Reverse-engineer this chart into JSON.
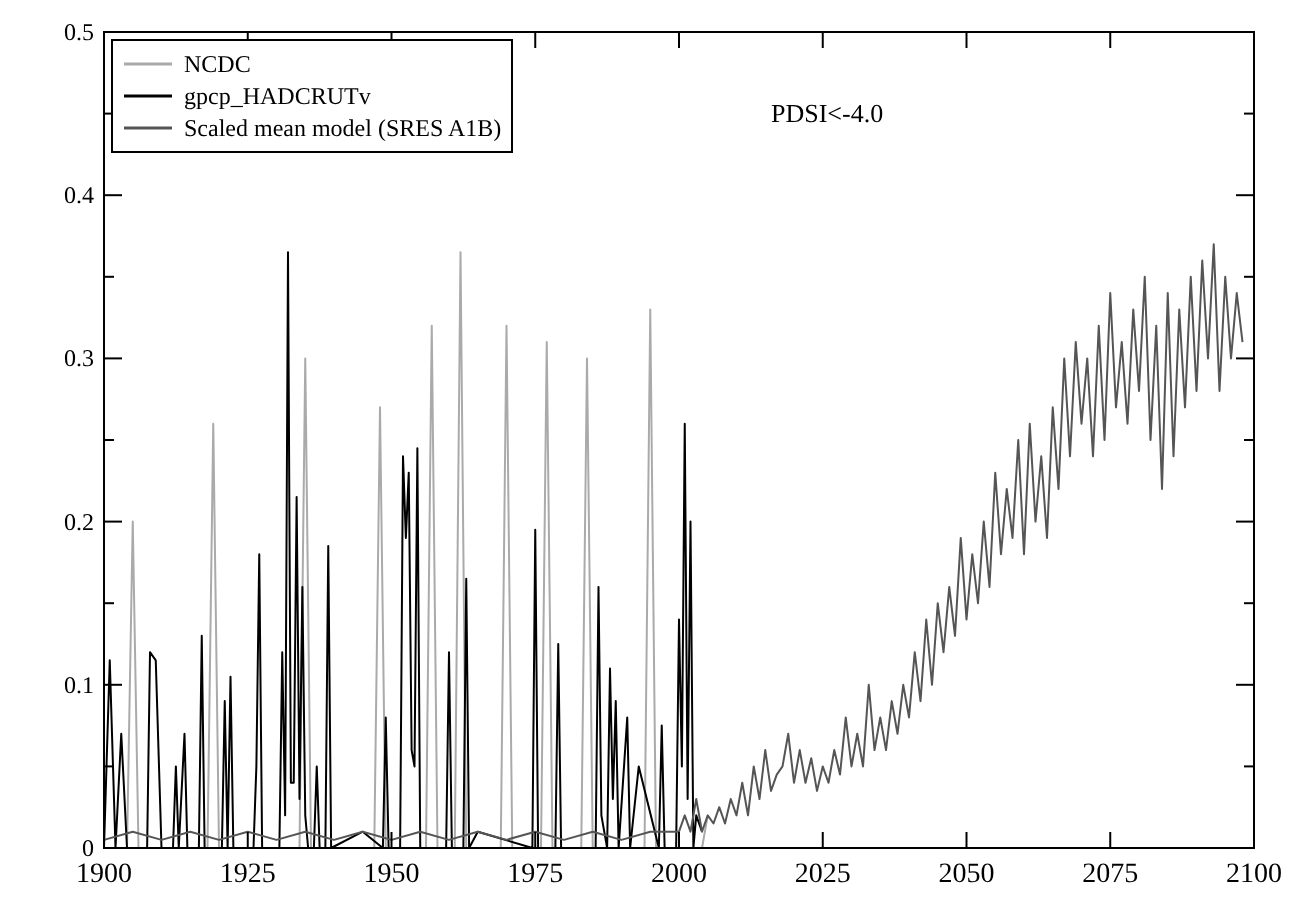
{
  "chart_data": {
    "type": "line",
    "annotations": [
      "PDSI<-4.0"
    ],
    "xlim": [
      1900,
      2100
    ],
    "xticks": [
      1900,
      1925,
      1950,
      1975,
      2000,
      2025,
      2050,
      2075,
      2100
    ],
    "ylim": [
      0,
      0.5
    ],
    "yticks": [
      0,
      {
        "value": 0.05,
        "label": null
      },
      0.1,
      {
        "value": 0.15,
        "label": null
      },
      0.2,
      {
        "value": 0.25,
        "label": null
      },
      0.3,
      {
        "value": 0.35,
        "label": null
      },
      0.4,
      {
        "value": 0.45,
        "label": null
      },
      0.5
    ],
    "grid": false,
    "legend": "top left",
    "marker": "none",
    "line_style": "solid",
    "series": [
      {
        "name": "NCDC",
        "color": "#aaaaaa",
        "x": [
          1904,
          1905,
          1906,
          1918,
          1919,
          1920,
          1934,
          1935,
          1936,
          1947,
          1948,
          1949,
          1956,
          1957,
          1958,
          1961,
          1962,
          1963,
          1969,
          1970,
          1971,
          1976,
          1977,
          1978,
          1983,
          1984,
          1985,
          1994,
          1995,
          1996,
          2004,
          2005
        ],
        "values": [
          0,
          0.2,
          0,
          0,
          0.26,
          0,
          0,
          0.3,
          0,
          0,
          0.27,
          0,
          0,
          0.32,
          0,
          0,
          0.365,
          0,
          0,
          0.32,
          0,
          0,
          0.31,
          0,
          0,
          0.3,
          0,
          0,
          0.33,
          0,
          0,
          0.02
        ]
      },
      {
        "name": "gpcp_HADCRUTv",
        "color": "#000000",
        "x": [
          1900,
          1901,
          1902,
          1903,
          1904,
          1907.5,
          1908,
          1909,
          1910,
          1912,
          1912.5,
          1913,
          1914,
          1914.5,
          1916.5,
          1917,
          1917.5,
          1920.5,
          1921,
          1921.5,
          1922,
          1922.5,
          1926,
          1926.5,
          1927,
          1927.5,
          1930.5,
          1931,
          1931.5,
          1932,
          1932.5,
          1933,
          1933.5,
          1934,
          1934.5,
          1935,
          1935.5,
          1936.5,
          1937,
          1937.5,
          1938.5,
          1939,
          1939.5,
          1945,
          1948.5,
          1949,
          1949.5,
          1951.5,
          1952,
          1952.5,
          1953,
          1953.5,
          1954,
          1954.5,
          1955,
          1955.5,
          1959.5,
          1960,
          1960.5,
          1962.5,
          1963,
          1963.5,
          1965,
          1974.5,
          1975,
          1975.5,
          1978.5,
          1979,
          1979.5,
          1985.5,
          1986,
          1986.5,
          1987.5,
          1988,
          1988.5,
          1989,
          1989.5,
          1991,
          1991.5,
          1993,
          1996.5,
          1997,
          1997.5,
          1999.5,
          2000,
          2000.5,
          2001,
          2001.5,
          2002,
          2002.5,
          2003,
          2004
        ],
        "values": [
          0,
          0.115,
          0,
          0.07,
          0,
          0,
          0.12,
          0.115,
          0,
          0,
          0.05,
          0,
          0.07,
          0,
          0,
          0.13,
          0,
          0,
          0.09,
          0,
          0.105,
          0,
          0,
          0.05,
          0.18,
          0,
          0,
          0.12,
          0.02,
          0.365,
          0.04,
          0.04,
          0.215,
          0.03,
          0.16,
          0.02,
          0,
          0,
          0.05,
          0,
          0,
          0.185,
          0,
          0.01,
          0,
          0.08,
          0,
          0,
          0.24,
          0.19,
          0.23,
          0.06,
          0.05,
          0.245,
          0,
          0,
          0,
          0.12,
          0,
          0,
          0.165,
          0,
          0.01,
          0,
          0.195,
          0,
          0,
          0.125,
          0,
          0,
          0.16,
          0.02,
          0,
          0.11,
          0.03,
          0.09,
          0,
          0.08,
          0,
          0.05,
          0,
          0.075,
          0,
          0,
          0.14,
          0.05,
          0.26,
          0.03,
          0.2,
          0,
          0.02,
          0.01
        ]
      },
      {
        "name": "Scaled mean model (SRES A1B)",
        "color": "#555555",
        "x": [
          1900,
          1905,
          1910,
          1915,
          1920,
          1925,
          1930,
          1935,
          1940,
          1945,
          1950,
          1955,
          1960,
          1965,
          1970,
          1975,
          1980,
          1985,
          1990,
          1995,
          2000,
          2001,
          2002,
          2003,
          2004,
          2005,
          2006,
          2007,
          2008,
          2009,
          2010,
          2011,
          2012,
          2013,
          2014,
          2015,
          2016,
          2017,
          2018,
          2019,
          2020,
          2021,
          2022,
          2023,
          2024,
          2025,
          2026,
          2027,
          2028,
          2029,
          2030,
          2031,
          2032,
          2033,
          2034,
          2035,
          2036,
          2037,
          2038,
          2039,
          2040,
          2041,
          2042,
          2043,
          2044,
          2045,
          2046,
          2047,
          2048,
          2049,
          2050,
          2051,
          2052,
          2053,
          2054,
          2055,
          2056,
          2057,
          2058,
          2059,
          2060,
          2061,
          2062,
          2063,
          2064,
          2065,
          2066,
          2067,
          2068,
          2069,
          2070,
          2071,
          2072,
          2073,
          2074,
          2075,
          2076,
          2077,
          2078,
          2079,
          2080,
          2081,
          2082,
          2083,
          2084,
          2085,
          2086,
          2087,
          2088,
          2089,
          2090,
          2091,
          2092,
          2093,
          2094,
          2095,
          2096,
          2097,
          2098
        ],
        "values": [
          0.005,
          0.01,
          0.005,
          0.01,
          0.005,
          0.01,
          0.005,
          0.01,
          0.005,
          0.01,
          0.005,
          0.01,
          0.005,
          0.01,
          0.005,
          0.01,
          0.005,
          0.01,
          0.005,
          0.01,
          0.01,
          0.02,
          0.01,
          0.03,
          0.01,
          0.02,
          0.015,
          0.025,
          0.015,
          0.03,
          0.02,
          0.04,
          0.02,
          0.05,
          0.03,
          0.06,
          0.035,
          0.045,
          0.05,
          0.07,
          0.04,
          0.06,
          0.04,
          0.055,
          0.035,
          0.05,
          0.04,
          0.06,
          0.045,
          0.08,
          0.05,
          0.07,
          0.05,
          0.1,
          0.06,
          0.08,
          0.06,
          0.09,
          0.07,
          0.1,
          0.08,
          0.12,
          0.09,
          0.14,
          0.1,
          0.15,
          0.12,
          0.16,
          0.13,
          0.19,
          0.14,
          0.18,
          0.15,
          0.2,
          0.16,
          0.23,
          0.18,
          0.22,
          0.19,
          0.25,
          0.18,
          0.26,
          0.2,
          0.24,
          0.19,
          0.27,
          0.22,
          0.3,
          0.24,
          0.31,
          0.26,
          0.3,
          0.24,
          0.32,
          0.25,
          0.34,
          0.27,
          0.31,
          0.26,
          0.33,
          0.28,
          0.35,
          0.25,
          0.32,
          0.22,
          0.34,
          0.24,
          0.33,
          0.27,
          0.35,
          0.28,
          0.36,
          0.3,
          0.37,
          0.28,
          0.35,
          0.3,
          0.34,
          0.31
        ]
      }
    ]
  }
}
